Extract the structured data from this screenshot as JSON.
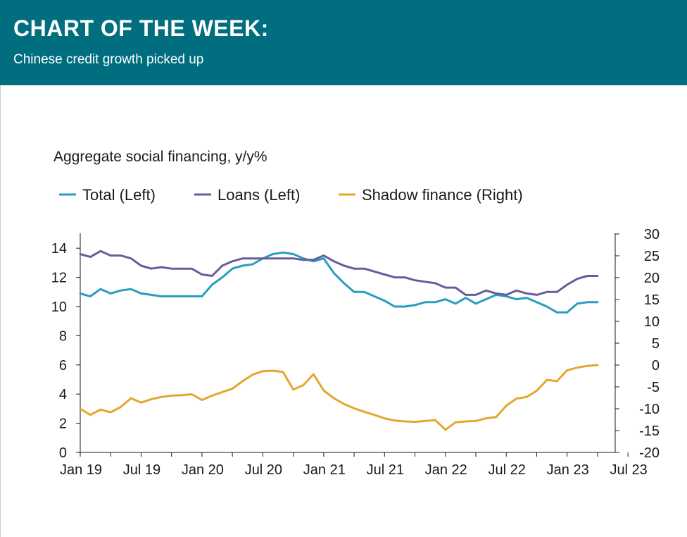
{
  "header": {
    "title": "CHART OF THE WEEK:",
    "subtitle": "Chinese credit growth picked  up"
  },
  "chart_data": {
    "type": "line",
    "title": "Aggregate social financing, y/y%",
    "xlabel": "",
    "ylabel": "",
    "x_ticks": [
      "Jan 19",
      "Jul 19",
      "Jan 20",
      "Jul 20",
      "Jan 21",
      "Jul 21",
      "Jan 22",
      "Jul 22",
      "Jan 23",
      "Jul 23"
    ],
    "x_range": [
      "2019-01",
      "2023-07"
    ],
    "y_left": {
      "ticks": [
        "0",
        "2",
        "4",
        "6",
        "8",
        "10",
        "12",
        "14"
      ],
      "ylim": [
        0,
        15
      ]
    },
    "y_right": {
      "ticks": [
        "-20",
        "-15",
        "-10",
        "-5",
        "0",
        "5",
        "10",
        "15",
        "20",
        "25",
        "30"
      ],
      "ylim": [
        -20,
        30
      ]
    },
    "grid": false,
    "legend_position": "top",
    "x": [
      "2019-01",
      "2019-02",
      "2019-03",
      "2019-04",
      "2019-05",
      "2019-06",
      "2019-07",
      "2019-08",
      "2019-09",
      "2019-10",
      "2019-11",
      "2019-12",
      "2020-01",
      "2020-02",
      "2020-03",
      "2020-04",
      "2020-05",
      "2020-06",
      "2020-07",
      "2020-08",
      "2020-09",
      "2020-10",
      "2020-11",
      "2020-12",
      "2021-01",
      "2021-02",
      "2021-03",
      "2021-04",
      "2021-05",
      "2021-06",
      "2021-07",
      "2021-08",
      "2021-09",
      "2021-10",
      "2021-11",
      "2021-12",
      "2022-01",
      "2022-02",
      "2022-03",
      "2022-04",
      "2022-05",
      "2022-06",
      "2022-07",
      "2022-08",
      "2022-09",
      "2022-10",
      "2022-11",
      "2022-12",
      "2023-01",
      "2023-02",
      "2023-03",
      "2023-04"
    ],
    "series": [
      {
        "name": "Total (Left)",
        "axis": "left",
        "color": "#2a9cc0",
        "values": [
          10.9,
          10.7,
          11.2,
          10.9,
          11.1,
          11.2,
          10.9,
          10.8,
          10.7,
          10.7,
          10.7,
          10.7,
          10.7,
          11.5,
          12.0,
          12.6,
          12.8,
          12.9,
          13.3,
          13.6,
          13.7,
          13.6,
          13.3,
          13.1,
          13.3,
          12.3,
          11.6,
          11.0,
          11.0,
          10.7,
          10.4,
          10.0,
          10.0,
          10.1,
          10.3,
          10.3,
          10.5,
          10.2,
          10.6,
          10.2,
          10.5,
          10.8,
          10.7,
          10.5,
          10.6,
          10.3,
          10.0,
          9.6,
          9.6,
          10.2,
          10.3,
          10.3
        ]
      },
      {
        "name": "Loans (Left)",
        "axis": "left",
        "color": "#6b5b9a",
        "values": [
          13.6,
          13.4,
          13.8,
          13.5,
          13.5,
          13.3,
          12.8,
          12.6,
          12.7,
          12.6,
          12.6,
          12.6,
          12.2,
          12.1,
          12.8,
          13.1,
          13.3,
          13.3,
          13.3,
          13.3,
          13.3,
          13.3,
          13.2,
          13.2,
          13.5,
          13.1,
          12.8,
          12.6,
          12.6,
          12.4,
          12.2,
          12.0,
          12.0,
          11.8,
          11.7,
          11.6,
          11.3,
          11.3,
          10.8,
          10.8,
          11.1,
          10.9,
          10.8,
          11.1,
          10.9,
          10.8,
          11.0,
          11.0,
          11.5,
          11.9,
          12.1,
          12.1
        ]
      },
      {
        "name": "Shadow finance (Right)",
        "axis": "right",
        "color": "#e3a72f",
        "values": [
          -10.0,
          -11.4,
          -10.2,
          -10.8,
          -9.6,
          -7.6,
          -8.6,
          -7.8,
          -7.3,
          -7.0,
          -6.9,
          -6.7,
          -8.0,
          -7.0,
          -6.2,
          -5.4,
          -3.7,
          -2.2,
          -1.4,
          -1.3,
          -1.6,
          -5.6,
          -4.6,
          -2.1,
          -5.8,
          -7.6,
          -8.9,
          -9.9,
          -10.7,
          -11.4,
          -12.2,
          -12.7,
          -12.9,
          -13.0,
          -12.8,
          -12.6,
          -14.8,
          -13.1,
          -12.9,
          -12.8,
          -12.2,
          -11.9,
          -9.3,
          -7.7,
          -7.3,
          -5.9,
          -3.4,
          -3.7,
          -1.2,
          -0.6,
          -0.2,
          0.0
        ]
      }
    ]
  }
}
